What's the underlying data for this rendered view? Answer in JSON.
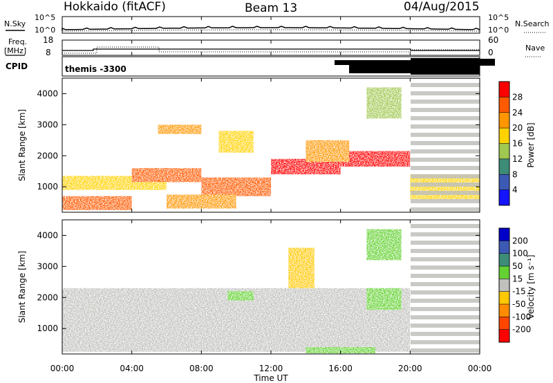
{
  "header": {
    "station": "Hokkaido (fitACF)",
    "beam": "Beam 13",
    "date": "04/Aug/2015"
  },
  "top_panels": {
    "nsky_label": "N.Sky",
    "nsky_ticks": [
      "10^5",
      "10^0"
    ],
    "nsearch_label": "N.Search",
    "nsearch_ticks": [
      "10^5",
      "10^0"
    ],
    "freq_label": "Freq.",
    "freq_unit": "[MHz]",
    "freq_ticks": [
      "18",
      "8"
    ],
    "nave_label": "Nave",
    "nave_ticks": [
      "60",
      "0"
    ],
    "cpid_label": "CPID",
    "cpid_value": "themis -3300"
  },
  "power_panel": {
    "ylabel": "Slant Range [km]",
    "yticks": [
      "4000",
      "3000",
      "2000",
      "1000"
    ],
    "cbar_label": "Power [dB]",
    "cbar_ticks": [
      "28",
      "24",
      "20",
      "16",
      "12",
      "8",
      "4"
    ],
    "cbar_colors": [
      "#ff0000",
      "#ff5a00",
      "#ff9600",
      "#ffd200",
      "#a0c850",
      "#3c8c78",
      "#3c5ab4",
      "#1414ff"
    ]
  },
  "velocity_panel": {
    "ylabel": "Slant Range [km]",
    "yticks": [
      "4000",
      "3000",
      "2000",
      "1000"
    ],
    "cbar_label": "Velocity [m s⁻¹]",
    "cbar_ticks": [
      "200",
      "100",
      "50",
      "15",
      "-15",
      "-50",
      "-100",
      "-200"
    ],
    "cbar_colors": [
      "#0000c8",
      "#3c5ab4",
      "#3c8c78",
      "#64d232",
      "#c0c0bc",
      "#ffc800",
      "#ff8c00",
      "#ff4600",
      "#ff0000"
    ]
  },
  "x_axis": {
    "label": "Time UT",
    "ticks": [
      "00:00",
      "04:00",
      "08:00",
      "12:00",
      "16:00",
      "20:00",
      "00:00"
    ]
  },
  "chart_data": {
    "type": "heatmap",
    "x_range": [
      "00:00",
      "24:00"
    ],
    "y_range_km": [
      180,
      4500
    ],
    "panels": [
      "Power [dB]",
      "Velocity [m s-1]"
    ],
    "power_bands": [
      {
        "x": [
          0,
          4
        ],
        "y": [
          250,
          700
        ],
        "value": 26
      },
      {
        "x": [
          0,
          6
        ],
        "y": [
          900,
          1350
        ],
        "value": 18
      },
      {
        "x": [
          4,
          8
        ],
        "y": [
          1150,
          1600
        ],
        "value": 26
      },
      {
        "x": [
          8,
          12
        ],
        "y": [
          700,
          1300
        ],
        "value": 24
      },
      {
        "x": [
          12,
          16
        ],
        "y": [
          1400,
          1900
        ],
        "value": 28
      },
      {
        "x": [
          16,
          20
        ],
        "y": [
          1650,
          2150
        ],
        "value": 28
      },
      {
        "x": [
          6,
          10
        ],
        "y": [
          300,
          750
        ],
        "value": 22
      },
      {
        "x": [
          14,
          16.5
        ],
        "y": [
          1800,
          2500
        ],
        "value": 22
      },
      {
        "x": [
          20,
          24
        ],
        "y": [
          600,
          1400
        ],
        "value": 18
      },
      {
        "x": [
          5.5,
          8
        ],
        "y": [
          2700,
          3000
        ],
        "value": 20
      },
      {
        "x": [
          9,
          11
        ],
        "y": [
          2100,
          2800
        ],
        "value": 18
      },
      {
        "x": [
          17.5,
          19.5
        ],
        "y": [
          3200,
          4200
        ],
        "value": 12
      }
    ],
    "velocity_bands": [
      {
        "x": [
          0,
          20
        ],
        "y": [
          250,
          2300
        ],
        "value": 0
      },
      {
        "x": [
          17.5,
          19.5
        ],
        "y": [
          1600,
          2300
        ],
        "value": 30
      },
      {
        "x": [
          17.5,
          19.5
        ],
        "y": [
          3200,
          4200
        ],
        "value": 30
      },
      {
        "x": [
          13,
          14.5
        ],
        "y": [
          2300,
          3600
        ],
        "value": -50
      },
      {
        "x": [
          9.5,
          11
        ],
        "y": [
          1900,
          2200
        ],
        "value": 30
      },
      {
        "x": [
          14,
          18
        ],
        "y": [
          200,
          400
        ],
        "value": 30
      }
    ]
  }
}
